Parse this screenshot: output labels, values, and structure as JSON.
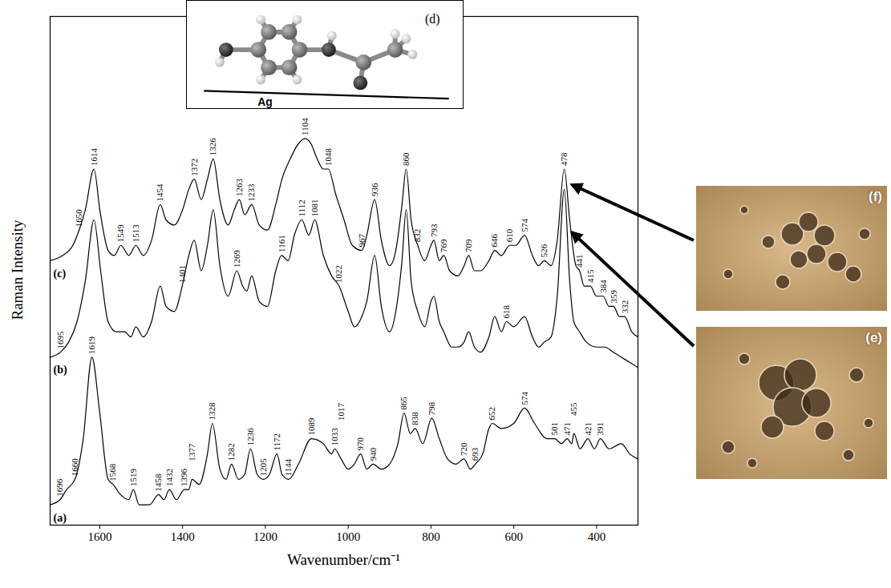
{
  "chart_data": {
    "type": "line",
    "x_label": "Wavenumber/cm⁻¹",
    "y_label": "Raman Intensity",
    "xlim": [
      1720,
      300
    ],
    "xticks": [
      1600,
      1400,
      1200,
      1000,
      800,
      600,
      400
    ],
    "ylim": [
      0,
      100
    ],
    "yticks": [],
    "tick_labels": "x",
    "series": [
      {
        "name": "(c)",
        "color": "#000000",
        "x": [
          1720,
          1690,
          1665,
          1650,
          1635,
          1614,
          1600,
          1580,
          1565,
          1549,
          1530,
          1513,
          1495,
          1475,
          1454,
          1440,
          1420,
          1400,
          1385,
          1372,
          1355,
          1340,
          1326,
          1310,
          1290,
          1275,
          1263,
          1250,
          1233,
          1215,
          1195,
          1175,
          1160,
          1140,
          1120,
          1104,
          1090,
          1075,
          1060,
          1048,
          1030,
          1010,
          990,
          967,
          955,
          936,
          920,
          900,
          885,
          870,
          860,
          848,
          832,
          815,
          800,
          793,
          780,
          769,
          755,
          735,
          720,
          709,
          695,
          680,
          660,
          646,
          630,
          610,
          595,
          574,
          555,
          540,
          526,
          510,
          495,
          478,
          465,
          450,
          441,
          430,
          415,
          400,
          384,
          370,
          359,
          345,
          332,
          315,
          300
        ],
        "values": [
          52,
          53,
          55,
          58,
          62,
          70,
          62,
          54,
          53,
          55,
          53,
          55,
          53,
          56,
          63,
          60,
          59,
          62,
          66,
          68,
          64,
          68,
          72,
          64,
          59,
          62,
          64,
          61,
          63,
          59,
          58,
          63,
          68,
          72,
          75,
          76,
          75,
          72,
          70,
          70,
          65,
          60,
          55,
          54,
          57,
          64,
          56,
          51,
          54,
          63,
          70,
          60,
          55,
          52,
          55,
          56,
          52,
          53,
          50,
          49,
          51,
          53,
          50,
          50,
          52,
          54,
          53,
          55,
          55,
          57,
          53,
          51,
          52,
          51,
          56,
          70,
          60,
          51,
          50,
          47,
          47,
          45,
          45,
          43,
          43,
          41,
          41,
          38,
          37
        ],
        "peak_labels": [
          1650,
          1614,
          1549,
          1513,
          1454,
          1372,
          1326,
          1263,
          1233,
          1104,
          1048,
          967,
          936,
          860,
          832,
          793,
          769,
          709,
          646,
          610,
          574,
          526,
          478,
          441,
          415,
          384,
          359,
          332
        ]
      },
      {
        "name": "(b)",
        "color": "#000000",
        "x": [
          1720,
          1695,
          1675,
          1655,
          1635,
          1614,
          1598,
          1580,
          1560,
          1540,
          1525,
          1513,
          1495,
          1475,
          1454,
          1440,
          1420,
          1401,
          1385,
          1372,
          1355,
          1340,
          1326,
          1310,
          1290,
          1269,
          1255,
          1245,
          1233,
          1215,
          1195,
          1175,
          1161,
          1145,
          1130,
          1112,
          1095,
          1081,
          1060,
          1040,
          1022,
          1000,
          985,
          967,
          955,
          936,
          920,
          900,
          885,
          870,
          860,
          848,
          832,
          815,
          800,
          793,
          780,
          769,
          750,
          735,
          720,
          709,
          695,
          680,
          660,
          646,
          630,
          618,
          600,
          574,
          555,
          540,
          526,
          510,
          495,
          478,
          465,
          455,
          441,
          425,
          400,
          380,
          360,
          340,
          320,
          300
        ],
        "values": [
          33,
          34,
          36,
          40,
          48,
          60,
          50,
          40,
          38,
          38,
          37,
          39,
          37,
          40,
          47,
          43,
          42,
          47,
          53,
          56,
          50,
          55,
          62,
          51,
          45,
          50,
          47,
          46,
          49,
          44,
          43,
          50,
          53,
          52,
          57,
          60,
          57,
          60,
          53,
          49,
          47,
          42,
          39,
          41,
          44,
          53,
          43,
          38,
          42,
          52,
          62,
          48,
          42,
          39,
          44,
          45,
          40,
          38,
          35,
          35,
          36,
          38,
          35,
          34,
          37,
          41,
          38,
          40,
          39,
          41,
          37,
          35,
          36,
          37,
          45,
          66,
          48,
          40,
          38,
          36,
          35,
          35,
          34,
          33,
          32,
          31
        ],
        "peak_labels": [
          1695,
          1401,
          1269,
          1161,
          1112,
          1081,
          1022,
          618
        ]
      },
      {
        "name": "(a)",
        "color": "#000000",
        "x": [
          1720,
          1696,
          1680,
          1660,
          1640,
          1619,
          1600,
          1580,
          1568,
          1550,
          1530,
          1519,
          1505,
          1480,
          1458,
          1445,
          1432,
          1415,
          1396,
          1385,
          1377,
          1360,
          1340,
          1328,
          1310,
          1295,
          1282,
          1265,
          1250,
          1236,
          1220,
          1205,
          1190,
          1172,
          1160,
          1144,
          1120,
          1089,
          1060,
          1040,
          1033,
          1017,
          1000,
          985,
          970,
          955,
          940,
          920,
          900,
          880,
          865,
          850,
          838,
          820,
          798,
          780,
          760,
          740,
          720,
          705,
          693,
          675,
          660,
          652,
          630,
          600,
          574,
          550,
          520,
          501,
          485,
          471,
          460,
          455,
          440,
          421,
          405,
          391,
          370,
          340,
          320,
          300
        ],
        "values": [
          4,
          5,
          7,
          9,
          17,
          33,
          22,
          9,
          8,
          6,
          5,
          7,
          4,
          4,
          6,
          5,
          7,
          5,
          7,
          7,
          9,
          8,
          14,
          20,
          11,
          9,
          12,
          9,
          10,
          15,
          10,
          9,
          10,
          14,
          10,
          9,
          12,
          17,
          16,
          14,
          15,
          13,
          11,
          12,
          14,
          11,
          12,
          11,
          12,
          16,
          22,
          18,
          19,
          16,
          21,
          17,
          13,
          12,
          13,
          11,
          12,
          14,
          19,
          20,
          19,
          20,
          23,
          20,
          17,
          17,
          16,
          17,
          16,
          18,
          15,
          17,
          15,
          17,
          15,
          16,
          14,
          13
        ],
        "peak_labels": [
          1696,
          1660,
          1619,
          1568,
          1519,
          1458,
          1432,
          1396,
          1377,
          1328,
          1282,
          1236,
          1205,
          1172,
          1144,
          1089,
          1033,
          1017,
          970,
          940,
          865,
          838,
          798,
          720,
          693,
          652,
          574,
          501,
          471,
          455,
          421,
          391
        ]
      }
    ]
  },
  "inset": {
    "label": "(d)",
    "surface_label": "Ag"
  },
  "images": [
    {
      "label": "(f)",
      "series": "(c)"
    },
    {
      "label": "(e)",
      "series": "(b)"
    }
  ]
}
